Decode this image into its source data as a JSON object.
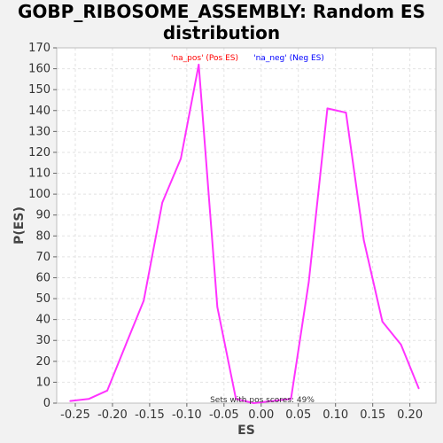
{
  "title_lines": [
    "GOBP_RIBOSOME_ASSEMBLY: Random ES",
    "distribution"
  ],
  "chart_data": {
    "type": "line",
    "title": "GOBP_RIBOSOME_ASSEMBLY: Random ES distribution",
    "xlabel": "ES",
    "ylabel": "P(ES)",
    "xlim": [
      -0.275,
      0.235
    ],
    "ylim": [
      0,
      170
    ],
    "x_ticks": [
      -0.25,
      -0.2,
      -0.15,
      -0.1,
      -0.05,
      0.0,
      0.05,
      0.1,
      0.15,
      0.2
    ],
    "x_tick_labels": [
      "-0.25",
      "-0.20",
      "-0.15",
      "-0.10",
      "-0.05",
      "0.00",
      "0.05",
      "0.10",
      "0.15",
      "0.20"
    ],
    "y_ticks": [
      0,
      10,
      20,
      30,
      40,
      50,
      60,
      70,
      80,
      90,
      100,
      110,
      120,
      130,
      140,
      150,
      160,
      170
    ],
    "y_tick_labels": [
      "0",
      "10",
      "20",
      "30",
      "40",
      "50",
      "60",
      "70",
      "80",
      "90",
      "100",
      "110",
      "120",
      "130",
      "140",
      "150",
      "160",
      "170"
    ],
    "grid": true,
    "legend": [
      {
        "label": "'na_pos' (Pos ES)",
        "color": "#ff0000"
      },
      {
        "label": "'na_neg' (Neg ES)",
        "color": "#0000ff"
      }
    ],
    "annotation": "Sets with pos scores: 49%",
    "series": [
      {
        "color": "#ff33ff",
        "x": [
          -0.257,
          -0.232,
          -0.207,
          -0.182,
          -0.158,
          -0.133,
          -0.108,
          -0.084,
          -0.059,
          -0.034,
          -0.01,
          0.015,
          0.04,
          0.064,
          0.089,
          0.114,
          0.138,
          0.163,
          0.188,
          0.212
        ],
        "y": [
          1,
          2,
          6,
          28,
          49,
          96,
          117,
          162,
          46,
          2,
          0,
          1,
          2,
          58,
          141,
          139,
          78,
          39,
          28,
          7
        ]
      }
    ]
  }
}
